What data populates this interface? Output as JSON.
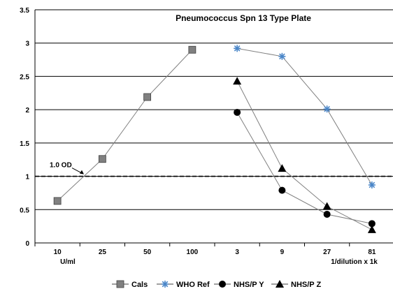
{
  "chart_data": {
    "type": "line",
    "title": "Pneumococcus Spn 13 Type Plate",
    "categories": [
      "10",
      "25",
      "50",
      "100",
      "3",
      "9",
      "27",
      "81"
    ],
    "x_group_labels": [
      "U/ml",
      "1/dilution x 1k"
    ],
    "ylim": [
      0,
      3.5
    ],
    "yticks": [
      "0",
      "0.5",
      "1",
      "1.5",
      "2",
      "2.5",
      "3",
      "3.5"
    ],
    "grid": true,
    "legend_position": "bottom",
    "reference_line": {
      "value": 1.0,
      "label": "1.0 OD",
      "style": "dashed"
    },
    "series": [
      {
        "name": "Cals",
        "marker": "square",
        "color": "#808080",
        "points": [
          [
            0,
            0.63
          ],
          [
            1,
            1.26
          ],
          [
            2,
            2.19
          ],
          [
            3,
            2.9
          ]
        ]
      },
      {
        "name": "WHO Ref",
        "marker": "asterisk",
        "color": "#4a86c8",
        "points": [
          [
            4,
            2.92
          ],
          [
            5,
            2.8
          ],
          [
            6,
            2.01
          ],
          [
            7,
            0.87
          ]
        ]
      },
      {
        "name": "NHS/P Y",
        "marker": "circle",
        "color": "#000000",
        "points": [
          [
            4,
            1.96
          ],
          [
            5,
            0.79
          ],
          [
            6,
            0.43
          ],
          [
            7,
            0.29
          ]
        ]
      },
      {
        "name": "NHS/P Z",
        "marker": "triangle",
        "color": "#000000",
        "points": [
          [
            4,
            2.43
          ],
          [
            5,
            1.12
          ],
          [
            6,
            0.55
          ],
          [
            7,
            0.2
          ]
        ]
      }
    ]
  }
}
